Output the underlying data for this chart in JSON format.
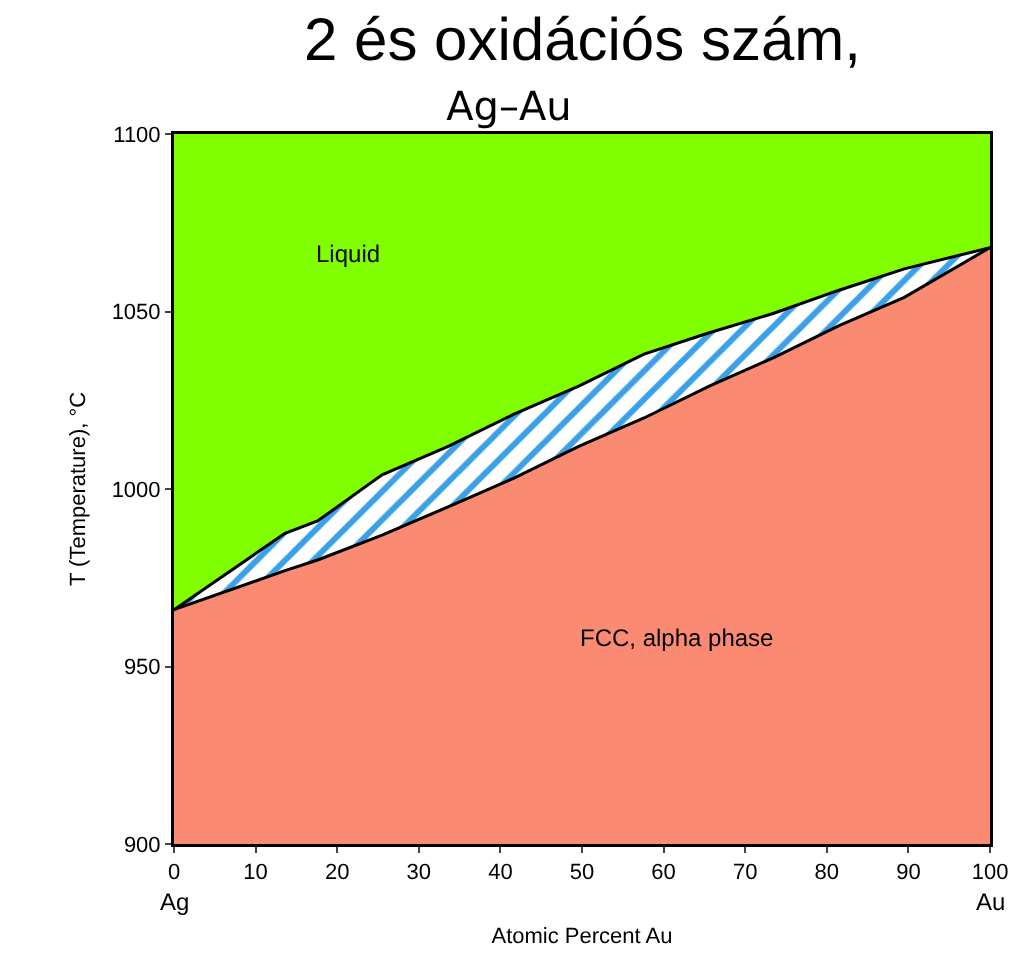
{
  "chart_data": {
    "type": "area",
    "title": "Ag–Au",
    "xlabel": "Atomic Percent Au",
    "ylabel": "T (Temperature), °C",
    "x": [
      0,
      13.6,
      17.6,
      25.5,
      33.6,
      41.6,
      49.6,
      57.6,
      65.6,
      73.5,
      81.5,
      89.5,
      100
    ],
    "series": [
      {
        "color": "#ffffff",
        "values": [
          966,
          987.5,
          991,
          1004,
          1012,
          1021,
          1029,
          1038,
          1044,
          1049.5,
          1056,
          1062,
          1068
        ]
      },
      {
        "color": "#fa8a72",
        "values": [
          966,
          977,
          980,
          987,
          995,
          1003,
          1012,
          1020,
          1029,
          1037,
          1046,
          1054,
          1068
        ]
      }
    ],
    "bands": [
      {
        "axis": "y",
        "from": 900,
        "to": 1100,
        "color": "#80ff00"
      }
    ],
    "annotations": [
      "2 és oxidációs szám,",
      "Liquid",
      "FCC, alpha phase",
      {
        "text": "Ag",
        "x": 0,
        "y": 900
      },
      {
        "text": "Au",
        "x": 100,
        "y": 900
      }
    ],
    "xlim": [
      0,
      100
    ],
    "xticks": [
      0,
      10,
      20,
      30,
      40,
      50,
      60,
      70,
      80,
      90,
      100
    ],
    "yticks": [
      900,
      950,
      1000,
      1050,
      1100
    ],
    "ylim": [
      900,
      1100
    ]
  }
}
